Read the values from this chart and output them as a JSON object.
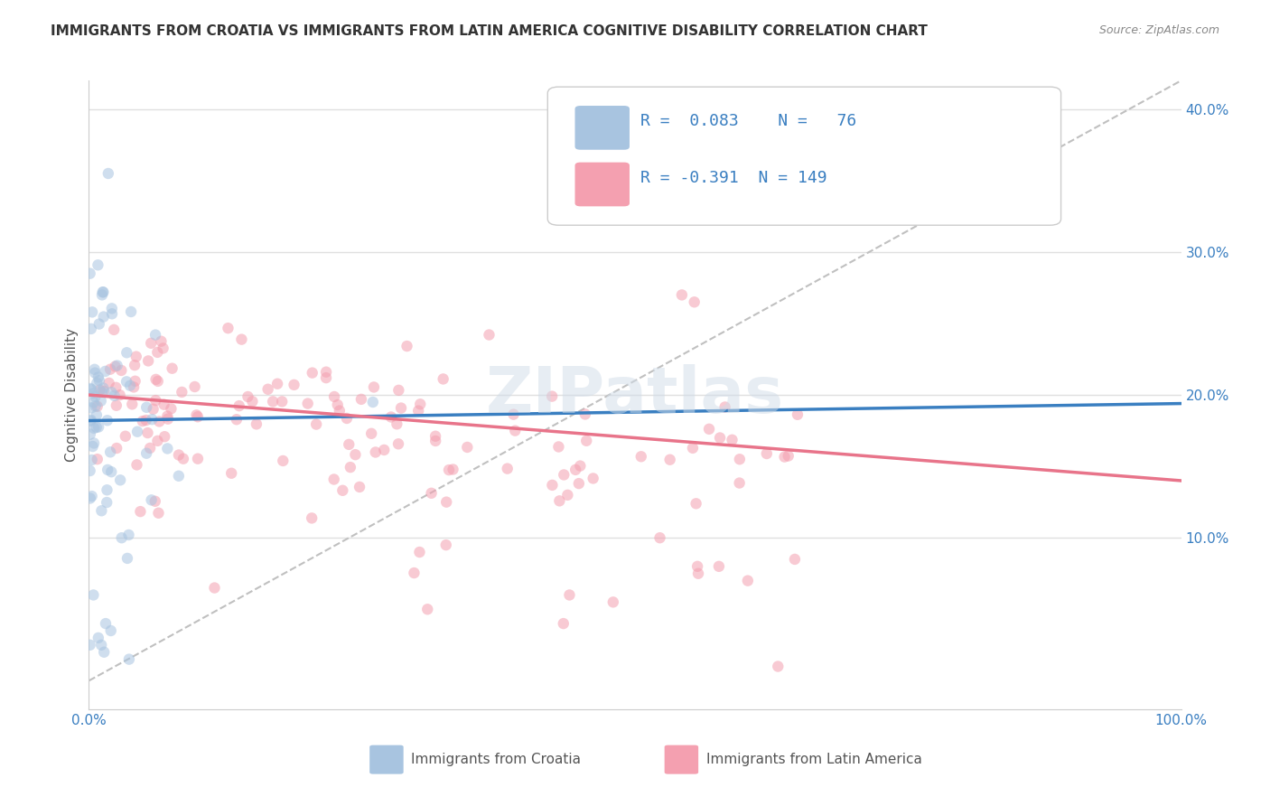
{
  "title": "IMMIGRANTS FROM CROATIA VS IMMIGRANTS FROM LATIN AMERICA COGNITIVE DISABILITY CORRELATION CHART",
  "source": "Source: ZipAtlas.com",
  "ylabel": "Cognitive Disability",
  "xlim": [
    0,
    1
  ],
  "ylim": [
    -0.02,
    0.42
  ],
  "croatia_R": 0.083,
  "croatia_N": 76,
  "latam_R": -0.391,
  "latam_N": 149,
  "croatia_color": "#a8c4e0",
  "latam_color": "#f4a0b0",
  "croatia_line_color": "#3a7fc1",
  "latam_line_color": "#e8748a",
  "ref_line_color": "#c0c0c0",
  "legend_text_color": "#3a7fc1",
  "watermark": "ZIPatlas",
  "background_color": "#ffffff",
  "grid_color": "#e0e0e0",
  "scatter_alpha": 0.55,
  "scatter_size": 80
}
